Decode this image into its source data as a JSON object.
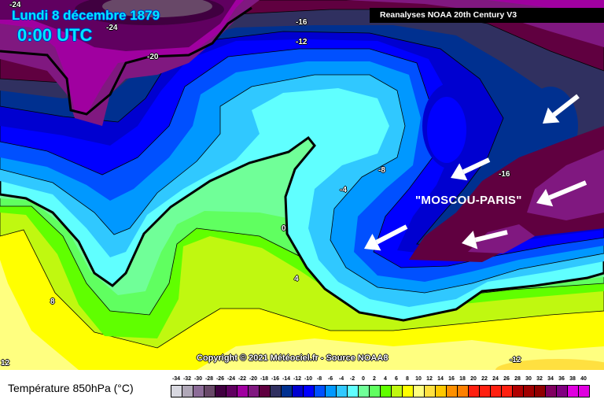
{
  "header": {
    "date": "Lundi 8 décembre 1879",
    "time": "0:00 UTC",
    "banner": "Reanalyses NOAA 20th Century V3"
  },
  "map": {
    "annotation": "\"MOSCOU-PARIS\"",
    "copyright": "Copyright © 2021 Météociel.fr - Source NOAA8",
    "contour_labels": [
      "-24",
      "-24",
      "-20",
      "-16",
      "-12",
      "-8",
      "-4",
      "0",
      "4",
      "8",
      "-16",
      "12",
      "-12"
    ],
    "arrow_icon": "white-arrow-pointing-southwest"
  },
  "legend": {
    "title": "Température 850hPa (°C)",
    "ticks": [
      "-34",
      "-32",
      "-30",
      "-28",
      "-26",
      "-24",
      "-22",
      "-20",
      "-18",
      "-16",
      "-14",
      "-12",
      "-10",
      "-8",
      "-6",
      "-4",
      "-2",
      "0",
      "2",
      "4",
      "6",
      "8",
      "10",
      "12",
      "14",
      "16",
      "18",
      "20",
      "22",
      "24",
      "26",
      "28",
      "30",
      "32",
      "34",
      "36",
      "38",
      "40"
    ],
    "colors": [
      "#d8d8e0",
      "#b0a8b8",
      "#8c6c98",
      "#684868",
      "#400040",
      "#600060",
      "#a000a0",
      "#801880",
      "#600040",
      "#303060",
      "#003090",
      "#0000d0",
      "#0000ff",
      "#0050ff",
      "#0098ff",
      "#30c8ff",
      "#60ffff",
      "#70ff98",
      "#60ff60",
      "#60ff00",
      "#c0f810",
      "#ffff00",
      "#ffff80",
      "#ffe040",
      "#ffc800",
      "#ff9000",
      "#ff8000",
      "#ff2010",
      "#ff2010",
      "#ff2010",
      "#ff2010",
      "#b00000",
      "#a00000",
      "#900000",
      "#800060",
      "#800080",
      "#e000e0",
      "#e000e0"
    ]
  }
}
